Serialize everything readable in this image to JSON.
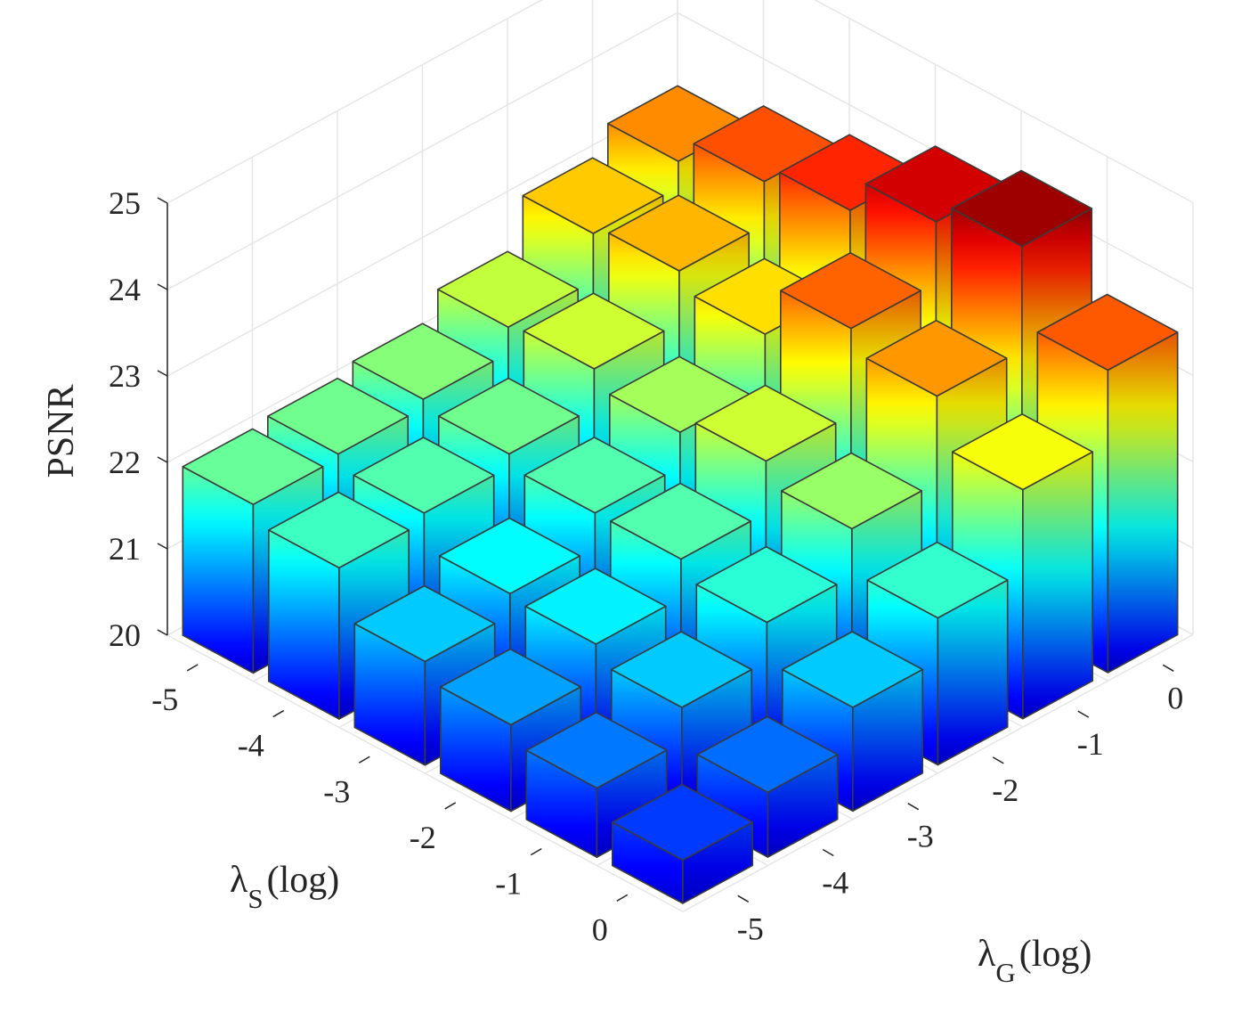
{
  "chart_data": {
    "type": "bar3d",
    "zlabel": "PSNR",
    "xlabel": {
      "main": "λ",
      "sub": "S",
      "suffix": "(log)"
    },
    "ylabel": {
      "main": "λ",
      "sub": "G",
      "suffix": "(log)"
    },
    "x_ticks": [
      "-5",
      "-4",
      "-3",
      "-2",
      "-1",
      "0"
    ],
    "y_ticks": [
      "-5",
      "-4",
      "-3",
      "-2",
      "-1",
      "0"
    ],
    "z_ticks": [
      "20",
      "21",
      "22",
      "23",
      "24",
      "25"
    ],
    "zlim": [
      20,
      25
    ],
    "colormap": "jet",
    "grid": true,
    "values": [
      [
        21.95,
        22.0,
        22.1,
        22.4,
        22.95,
        23.25
      ],
      [
        21.75,
        21.85,
        22.0,
        22.45,
        23.05,
        23.55
      ],
      [
        21.2,
        21.45,
        21.85,
        22.25,
        22.85,
        23.75
      ],
      [
        21.0,
        21.4,
        21.85,
        22.45,
        23.45,
        24.15
      ],
      [
        20.8,
        21.2,
        21.65,
        22.2,
        23.2,
        24.4
      ],
      [
        20.5,
        20.75,
        21.2,
        21.7,
        22.65,
        23.5
      ]
    ]
  }
}
